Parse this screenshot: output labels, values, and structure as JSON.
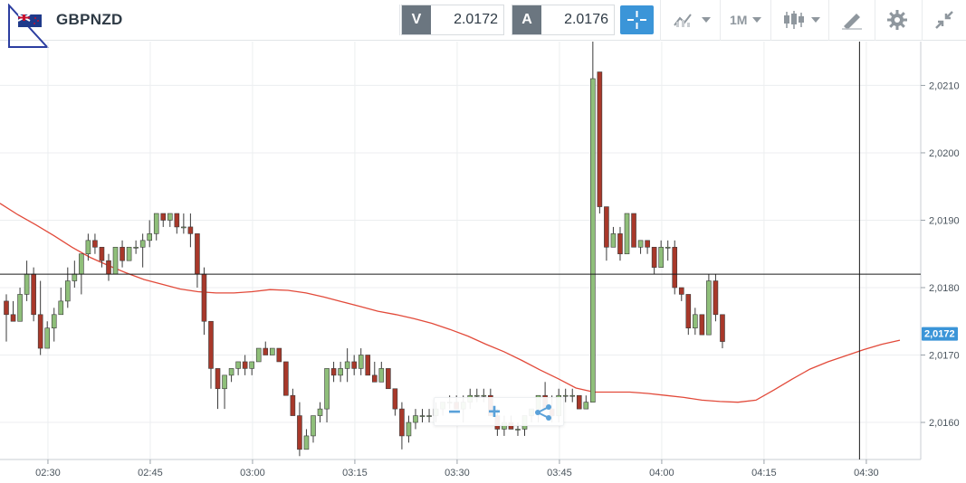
{
  "instrument": {
    "symbol": "GBPNZD",
    "flag_icon": "gb-nz-flag-icon"
  },
  "quotes": {
    "sell_tag": "V",
    "sell_value": "2.0172",
    "buy_tag": "A",
    "buy_value": "2.0176"
  },
  "toolbar": {
    "crosshair_icon": "crosshair-icon",
    "indicators_icon": "indicators-icon",
    "timeframe_label": "1M",
    "chart_type_icon": "candlestick-icon",
    "drawing_icon": "drawing-pen-icon",
    "settings_icon": "gear-icon",
    "collapse_icon": "collapse-arrows-icon"
  },
  "zoom_controls": {
    "zoom_out_label": "−",
    "zoom_in_label": "+",
    "share_icon": "share-icon"
  },
  "colors": {
    "bull": "#8fbf7a",
    "bear": "#a8382a",
    "ma": "#e24a3a",
    "accent": "#3b95d8",
    "price_label": "#3b95d8"
  },
  "chart_data": {
    "type": "candlestick",
    "y_ticks": [
      "2,0160",
      "2,0170",
      "2,0180",
      "2,0190",
      "2,0200",
      "2,0210"
    ],
    "x_ticks": [
      "02:30",
      "02:45",
      "03:00",
      "03:15",
      "03:30",
      "03:45",
      "04:00",
      "04:15",
      "04:30"
    ],
    "current_price_label": "2,0172",
    "crosshair_price": 2.0182,
    "crosshair_time": "04:29",
    "ylim": [
      2.01545,
      2.02165
    ],
    "moving_average": [
      2.01925,
      2.01908,
      2.01893,
      2.01877,
      2.0186,
      2.01845,
      2.01833,
      2.01822,
      2.01812,
      2.01805,
      2.01798,
      2.01794,
      2.01792,
      2.01792,
      2.01794,
      2.01797,
      2.01796,
      2.01792,
      2.01786,
      2.01779,
      2.01772,
      2.01765,
      2.0176,
      2.01754,
      2.01747,
      2.01738,
      2.01728,
      2.01716,
      2.01705,
      2.01692,
      2.01678,
      2.01665,
      2.01651,
      2.01645,
      2.01645,
      2.01645,
      2.01643,
      2.0164,
      2.01637,
      2.01633,
      2.01631,
      2.0163,
      2.01633,
      2.01648,
      2.01664,
      2.01679,
      2.0169,
      2.01699,
      2.01708,
      2.01716,
      2.01722
    ],
    "candles": [
      [
        2.0178,
        2.0179,
        2.0172,
        2.0176
      ],
      [
        2.0176,
        2.0178,
        2.0175,
        2.0175
      ],
      [
        2.0175,
        2.018,
        2.0175,
        2.0179
      ],
      [
        2.0179,
        2.0184,
        2.0178,
        2.0182
      ],
      [
        2.0182,
        2.0183,
        2.0175,
        2.0176
      ],
      [
        2.0176,
        2.0181,
        2.017,
        2.0171
      ],
      [
        2.0171,
        2.0175,
        2.0171,
        2.0174
      ],
      [
        2.0174,
        2.0177,
        2.0172,
        2.0176
      ],
      [
        2.0176,
        2.018,
        2.0176,
        2.0178
      ],
      [
        2.0178,
        2.0183,
        2.0177,
        2.0181
      ],
      [
        2.0181,
        2.0184,
        2.018,
        2.0182
      ],
      [
        2.0182,
        2.0185,
        2.0179,
        2.0185
      ],
      [
        2.0185,
        2.0188,
        2.0184,
        2.0187
      ],
      [
        2.0187,
        2.0188,
        2.0185,
        2.0186
      ],
      [
        2.0186,
        2.0186,
        2.0183,
        2.0184
      ],
      [
        2.0184,
        2.0185,
        2.0181,
        2.0182
      ],
      [
        2.0182,
        2.0186,
        2.0182,
        2.0186
      ],
      [
        2.0186,
        2.0187,
        2.0183,
        2.0184
      ],
      [
        2.0184,
        2.0186,
        2.0184,
        2.0186
      ],
      [
        2.0186,
        2.0187,
        2.0185,
        2.0186
      ],
      [
        2.0186,
        2.0188,
        2.0183,
        2.0187
      ],
      [
        2.0187,
        2.019,
        2.0186,
        2.0188
      ],
      [
        2.0188,
        2.0191,
        2.0187,
        2.0191
      ],
      [
        2.0191,
        2.0191,
        2.0189,
        2.019
      ],
      [
        2.019,
        2.0191,
        2.0189,
        2.0191
      ],
      [
        2.0191,
        2.0191,
        2.0188,
        2.0189
      ],
      [
        2.0189,
        2.0191,
        2.0188,
        2.0189
      ],
      [
        2.0189,
        2.0191,
        2.0186,
        2.0188
      ],
      [
        2.0188,
        2.0188,
        2.018,
        2.0182
      ],
      [
        2.0182,
        2.0183,
        2.0173,
        2.0175
      ],
      [
        2.0175,
        2.0175,
        2.0165,
        2.0168
      ],
      [
        2.0168,
        2.0168,
        2.0162,
        2.0165
      ],
      [
        2.0165,
        2.0167,
        2.0162,
        2.0167
      ],
      [
        2.0167,
        2.0168,
        2.0166,
        2.0168
      ],
      [
        2.0168,
        2.0169,
        2.0167,
        2.0169
      ],
      [
        2.0169,
        2.017,
        2.0167,
        2.0168
      ],
      [
        2.0168,
        2.0169,
        2.0167,
        2.0169
      ],
      [
        2.0169,
        2.0171,
        2.0169,
        2.0171
      ],
      [
        2.0171,
        2.0172,
        2.017,
        2.017
      ],
      [
        2.017,
        2.0171,
        2.017,
        2.0171
      ],
      [
        2.0171,
        2.0171,
        2.0169,
        2.0169
      ],
      [
        2.0169,
        2.0169,
        2.0164,
        2.0164
      ],
      [
        2.0164,
        2.0165,
        2.0161,
        2.0161
      ],
      [
        2.0161,
        2.0163,
        2.0155,
        2.0156
      ],
      [
        2.0156,
        2.0159,
        2.0156,
        2.0158
      ],
      [
        2.0158,
        2.0161,
        2.0157,
        2.0161
      ],
      [
        2.0161,
        2.0163,
        2.016,
        2.0162
      ],
      [
        2.0162,
        2.0168,
        2.016,
        2.0168
      ],
      [
        2.0168,
        2.0169,
        2.0166,
        2.0167
      ],
      [
        2.0167,
        2.0169,
        2.0166,
        2.0168
      ],
      [
        2.0168,
        2.0171,
        2.0166,
        2.0169
      ],
      [
        2.0169,
        2.017,
        2.0167,
        2.0168
      ],
      [
        2.0168,
        2.0171,
        2.0167,
        2.017
      ],
      [
        2.017,
        2.017,
        2.0167,
        2.0167
      ],
      [
        2.0167,
        2.0169,
        2.0166,
        2.0166
      ],
      [
        2.0166,
        2.0169,
        2.0166,
        2.0168
      ],
      [
        2.0168,
        2.0168,
        2.0165,
        2.0165
      ],
      [
        2.0165,
        2.0165,
        2.0161,
        2.0162
      ],
      [
        2.0162,
        2.0163,
        2.0156,
        2.0158
      ],
      [
        2.0158,
        2.0161,
        2.0157,
        2.016
      ],
      [
        2.016,
        2.0162,
        2.0159,
        2.0161
      ],
      [
        2.0161,
        2.0162,
        2.016,
        2.0161
      ],
      [
        2.0161,
        2.0162,
        2.016,
        2.0161
      ],
      [
        2.0161,
        2.0163,
        2.016,
        2.0162
      ],
      [
        2.0162,
        2.0163,
        2.0161,
        2.0163
      ],
      [
        2.0163,
        2.0164,
        2.0162,
        2.0163
      ],
      [
        2.0163,
        2.0164,
        2.0162,
        2.0162
      ],
      [
        2.0162,
        2.0164,
        2.016,
        2.0163
      ],
      [
        2.0163,
        2.0165,
        2.0162,
        2.0164
      ],
      [
        2.0164,
        2.0165,
        2.0163,
        2.0164
      ],
      [
        2.0164,
        2.0165,
        2.0163,
        2.0164
      ],
      [
        2.0164,
        2.0165,
        2.0161,
        2.0161
      ],
      [
        2.0161,
        2.0162,
        2.0158,
        2.0159
      ],
      [
        2.0159,
        2.0161,
        2.0158,
        2.016
      ],
      [
        2.016,
        2.0161,
        2.0159,
        2.0159
      ],
      [
        2.0159,
        2.016,
        2.0158,
        2.0159
      ],
      [
        2.0159,
        2.0161,
        2.0158,
        2.0161
      ],
      [
        2.0161,
        2.0162,
        2.016,
        2.0162
      ],
      [
        2.0162,
        2.0164,
        2.016,
        2.0164
      ],
      [
        2.0164,
        2.0166,
        2.0162,
        2.0162
      ],
      [
        2.0162,
        2.0164,
        2.016,
        2.0161
      ],
      [
        2.0161,
        2.0165,
        2.016,
        2.0164
      ],
      [
        2.0164,
        2.0165,
        2.0163,
        2.0164
      ],
      [
        2.0164,
        2.0165,
        2.0163,
        2.0164
      ],
      [
        2.0164,
        2.0164,
        2.0162,
        2.0162
      ],
      [
        2.0162,
        2.0164,
        2.0162,
        2.0163
      ],
      [
        2.0163,
        2.0217,
        2.0163,
        2.0211
      ],
      [
        2.0212,
        2.0212,
        2.0191,
        2.0192
      ],
      [
        2.0192,
        2.0192,
        2.0184,
        2.0186
      ],
      [
        2.0186,
        2.0189,
        2.0186,
        2.0188
      ],
      [
        2.0188,
        2.0189,
        2.0184,
        2.0185
      ],
      [
        2.0185,
        2.0191,
        2.0185,
        2.0191
      ],
      [
        2.0191,
        2.0191,
        2.0186,
        2.0186
      ],
      [
        2.0186,
        2.0187,
        2.0185,
        2.0187
      ],
      [
        2.0187,
        2.0187,
        2.0185,
        2.0186
      ],
      [
        2.0186,
        2.0186,
        2.0182,
        2.0183
      ],
      [
        2.0183,
        2.0187,
        2.0183,
        2.0186
      ],
      [
        2.0186,
        2.0187,
        2.0184,
        2.0186
      ],
      [
        2.0186,
        2.0187,
        2.0179,
        2.018
      ],
      [
        2.018,
        2.018,
        2.0178,
        2.0179
      ],
      [
        2.0179,
        2.0179,
        2.0173,
        2.0174
      ],
      [
        2.0174,
        2.0177,
        2.0173,
        2.0176
      ],
      [
        2.0176,
        2.0176,
        2.0173,
        2.0173
      ],
      [
        2.0173,
        2.0182,
        2.0173,
        2.0181
      ],
      [
        2.0181,
        2.0182,
        2.0175,
        2.0176
      ],
      [
        2.0176,
        2.0176,
        2.0171,
        2.0172
      ]
    ]
  }
}
